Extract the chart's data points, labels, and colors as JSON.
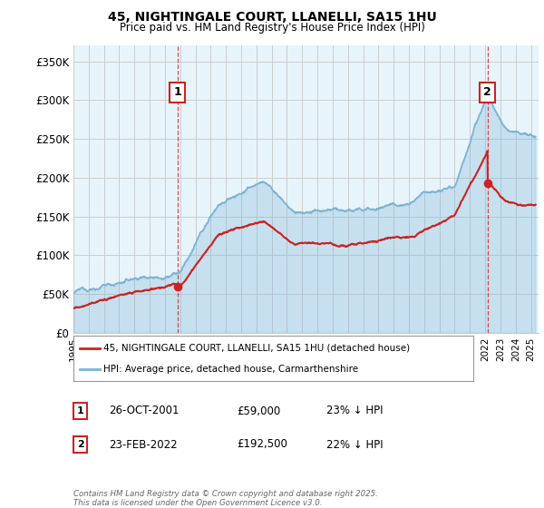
{
  "title_line1": "45, NIGHTINGALE COURT, LLANELLI, SA15 1HU",
  "title_line2": "Price paid vs. HM Land Registry's House Price Index (HPI)",
  "ylim": [
    0,
    370000
  ],
  "yticks": [
    0,
    50000,
    100000,
    150000,
    200000,
    250000,
    300000,
    350000
  ],
  "ytick_labels": [
    "£0",
    "£50K",
    "£100K",
    "£150K",
    "£200K",
    "£250K",
    "£300K",
    "£350K"
  ],
  "xlim_start": 1995.0,
  "xlim_end": 2025.5,
  "hpi_color": "#7ab3d4",
  "hpi_fill_color": "#ddeef7",
  "price_color": "#cc2222",
  "marker1_date": 2001.82,
  "marker1_price": 59000,
  "marker1_label": "1",
  "marker2_date": 2022.15,
  "marker2_price": 192500,
  "marker2_label": "2",
  "vline_color": "#cc2222",
  "legend_line1": "45, NIGHTINGALE COURT, LLANELLI, SA15 1HU (detached house)",
  "legend_line2": "HPI: Average price, detached house, Carmarthenshire",
  "annotation1_date": "26-OCT-2001",
  "annotation1_price": "£59,000",
  "annotation1_hpi": "23% ↓ HPI",
  "annotation2_date": "23-FEB-2022",
  "annotation2_price": "£192,500",
  "annotation2_hpi": "22% ↓ HPI",
  "footer": "Contains HM Land Registry data © Crown copyright and database right 2025.\nThis data is licensed under the Open Government Licence v3.0.",
  "grid_color": "#cccccc",
  "plot_bg_color": "#e8f4fc",
  "background_color": "#ffffff"
}
